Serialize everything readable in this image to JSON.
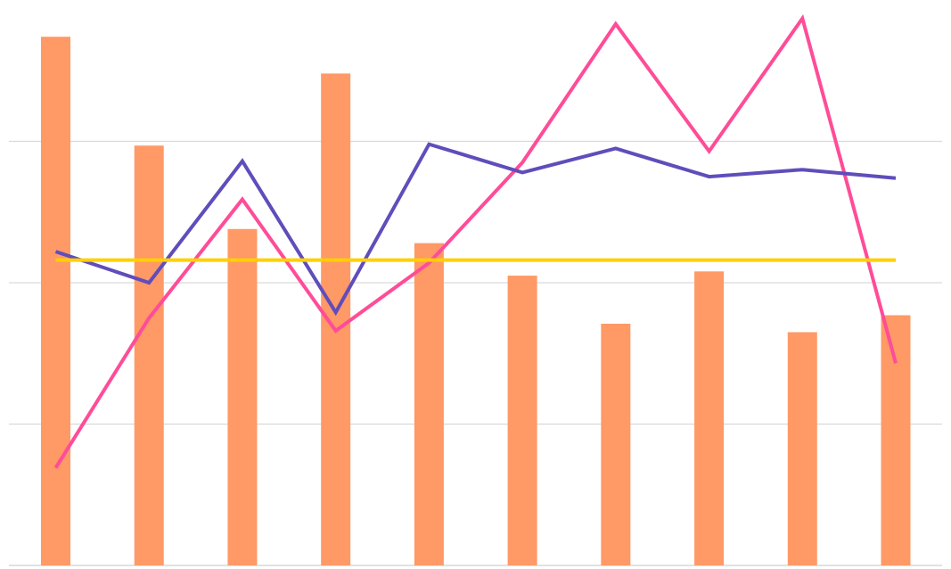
{
  "chart_data": {
    "type": "bar",
    "title": "",
    "xlabel": "",
    "ylabel": "",
    "categories": [
      "",
      "",
      "",
      "",
      "",
      "",
      "",
      "",
      "",
      ""
    ],
    "ylim": [
      0,
      4
    ],
    "grid": true,
    "legend": "none",
    "bars": {
      "color": "#FF9966",
      "values": [
        3.74,
        2.97,
        2.38,
        3.48,
        2.28,
        2.05,
        1.71,
        2.08,
        1.65,
        1.77
      ]
    },
    "lines": [
      {
        "color": "#FF4C98",
        "values": [
          0.69,
          1.75,
          2.59,
          1.66,
          2.14,
          2.85,
          3.83,
          2.93,
          3.87,
          1.43
        ]
      },
      {
        "color": "#604DBB",
        "values": [
          2.22,
          2.0,
          2.86,
          1.79,
          2.98,
          2.78,
          2.95,
          2.75,
          2.8,
          2.74
        ]
      },
      {
        "color": "#FFD000",
        "values": [
          2.16,
          2.16,
          2.16,
          2.16,
          2.16,
          2.16,
          2.16,
          2.16,
          2.16,
          2.16
        ]
      }
    ],
    "gridline_color": "#D9D9D9"
  }
}
